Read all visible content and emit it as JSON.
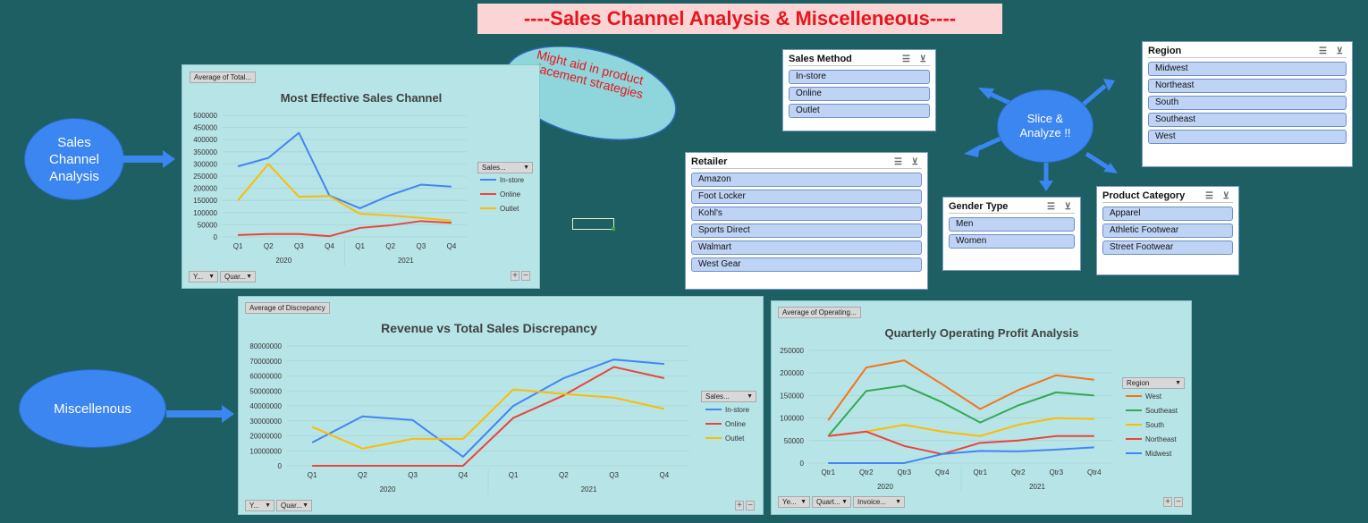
{
  "header": {
    "title": "----Sales Channel Analysis & Miscelleneous----"
  },
  "labels": {
    "sales_channel_analysis": "Sales Channel Analysis",
    "miscellenous": "Miscellenous",
    "slice_analyze": "Slice & Analyze !!",
    "callout": "Might aid in product placement strategies"
  },
  "colors": {
    "background": "#1e5f63",
    "panel": "#b7e4e7",
    "in_store": "#4285f4",
    "online": "#e8453c",
    "outlet": "#fbbc04",
    "west": "#f4731c",
    "southeast": "#34a853",
    "south": "#fbbc04",
    "northeast": "#e8453c",
    "midwest": "#4285f4"
  },
  "charts": {
    "sales_channel": {
      "tag": "Average of Total...",
      "filter_label": "Sales...",
      "year_filter": "Y...",
      "quarter_filter": "Quar...",
      "plus": "+",
      "minus": "−"
    },
    "discrepancy": {
      "tag": "Average of Discrepancy",
      "filter_label": "Sales...",
      "year_filter": "Y...",
      "quarter_filter": "Quar...",
      "plus": "+",
      "minus": "−"
    },
    "operating_profit": {
      "tag": "Average of Operating...",
      "filter_label": "Region",
      "year_filter": "Ye...",
      "quarter_filter": "Quart...",
      "invoice_filter": "Invoice...",
      "plus": "+",
      "minus": "−"
    }
  },
  "chart_data": [
    {
      "type": "line",
      "title": "Most Effective Sales Channel",
      "categories": [
        "Q1",
        "Q2",
        "Q3",
        "Q4",
        "Q1",
        "Q2",
        "Q3",
        "Q4"
      ],
      "groups": [
        "2020",
        "2021"
      ],
      "yticks": [
        "500000",
        "450000",
        "400000",
        "350000",
        "300000",
        "250000",
        "200000",
        "150000",
        "100000",
        "50000",
        "0"
      ],
      "ylim": [
        0,
        500000
      ],
      "series": [
        {
          "name": "In-store",
          "color": "#4285f4",
          "values": [
            290000,
            325000,
            428000,
            170000,
            118000,
            172000,
            215000,
            207000
          ]
        },
        {
          "name": "Online",
          "color": "#e8453c",
          "values": [
            8000,
            12000,
            12000,
            3000,
            37000,
            48000,
            65000,
            58000
          ]
        },
        {
          "name": "Outlet",
          "color": "#fbbc04",
          "values": [
            150000,
            300000,
            165000,
            168000,
            95000,
            88000,
            78000,
            67000
          ]
        }
      ]
    },
    {
      "type": "line",
      "title": "Revenue vs Total Sales Discrepancy",
      "categories": [
        "Q1",
        "Q2",
        "Q3",
        "Q4",
        "Q1",
        "Q2",
        "Q3",
        "Q4"
      ],
      "groups": [
        "2020",
        "2021"
      ],
      "yticks": [
        "80000000",
        "70000000",
        "60000000",
        "50000000",
        "40000000",
        "30000000",
        "20000000",
        "10000000",
        "0"
      ],
      "ylim": [
        0,
        80000000
      ],
      "series": [
        {
          "name": "In-store",
          "color": "#4285f4",
          "values": [
            15500000,
            33000000,
            30500000,
            6000000,
            40000000,
            58500000,
            71000000,
            68000000
          ]
        },
        {
          "name": "Online",
          "color": "#e8453c",
          "values": [
            0,
            0,
            0,
            0,
            32000000,
            47000000,
            66000000,
            58500000
          ]
        },
        {
          "name": "Outlet",
          "color": "#fbbc04",
          "values": [
            26000000,
            11500000,
            18000000,
            18000000,
            51000000,
            48000000,
            45500000,
            38000000
          ]
        }
      ]
    },
    {
      "type": "line",
      "title": "Quarterly Operating Profit Analysis",
      "categories": [
        "Qtr1",
        "Qtr2",
        "Qtr3",
        "Qtr4",
        "Qtr1",
        "Qtr2",
        "Qtr3",
        "Qtr4"
      ],
      "groups": [
        "2020",
        "2021"
      ],
      "yticks": [
        "250000",
        "200000",
        "150000",
        "100000",
        "50000",
        "0"
      ],
      "ylim": [
        0,
        250000
      ],
      "series": [
        {
          "name": "West",
          "color": "#f4731c",
          "values": [
            95000,
            212000,
            228000,
            175000,
            120000,
            162000,
            195000,
            185000
          ]
        },
        {
          "name": "Southeast",
          "color": "#34a853",
          "values": [
            60000,
            160000,
            172000,
            135000,
            90000,
            128000,
            157000,
            150000
          ]
        },
        {
          "name": "South",
          "color": "#fbbc04",
          "values": [
            60000,
            70000,
            85000,
            70000,
            60000,
            85000,
            100000,
            98000
          ]
        },
        {
          "name": "Northeast",
          "color": "#e8453c",
          "values": [
            60000,
            70000,
            38000,
            20000,
            45000,
            50000,
            60000,
            60000
          ]
        },
        {
          "name": "Midwest",
          "color": "#4285f4",
          "values": [
            0,
            0,
            0,
            20000,
            27000,
            26000,
            30000,
            35000
          ]
        }
      ]
    }
  ],
  "slicers": {
    "sales_method": {
      "title": "Sales Method",
      "items": [
        "In-store",
        "Online",
        "Outlet"
      ]
    },
    "region": {
      "title": "Region",
      "items": [
        "Midwest",
        "Northeast",
        "South",
        "Southeast",
        "West"
      ]
    },
    "retailer": {
      "title": "Retailer",
      "items": [
        "Amazon",
        "Foot Locker",
        "Kohl's",
        "Sports Direct",
        "Walmart",
        "West Gear"
      ]
    },
    "gender": {
      "title": "Gender Type",
      "items": [
        "Men",
        "Women"
      ]
    },
    "product_category": {
      "title": "Product Category",
      "items": [
        "Apparel",
        "Athletic Footwear",
        "Street Footwear"
      ]
    }
  },
  "icons": {
    "multiselect": "multi-select-icon",
    "clear_filter": "clear-filter-icon"
  }
}
